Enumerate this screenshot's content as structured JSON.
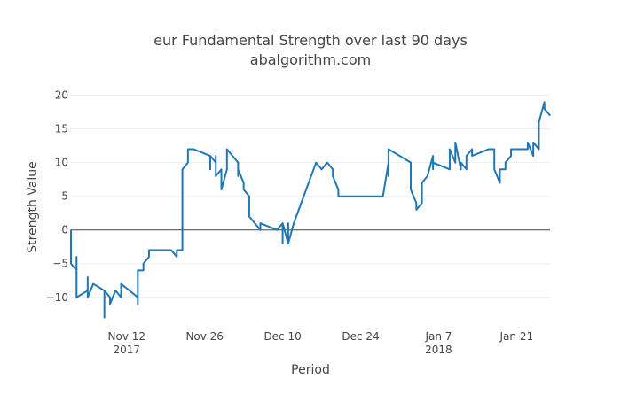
{
  "chart_data": {
    "type": "line",
    "title": "eur Fundamental Strength over last 90 days",
    "subtitle": "abalgorithm.com",
    "xlabel": "Period",
    "ylabel": "Strength Value",
    "xlim": [
      "2017-11-02",
      "2018-01-27"
    ],
    "ylim": [
      -14.5,
      21
    ],
    "yticks": [
      20,
      15,
      10,
      5,
      0,
      -5,
      -10
    ],
    "ytick_labels": [
      "20",
      "15",
      "10",
      "5",
      "0",
      "−5",
      "−10"
    ],
    "xticks": [
      {
        "date": "2017-11-12",
        "label": "Nov 12",
        "sub": "2017"
      },
      {
        "date": "2017-11-26",
        "label": "Nov 26",
        "sub": ""
      },
      {
        "date": "2017-12-10",
        "label": "Dec 10",
        "sub": ""
      },
      {
        "date": "2017-12-24",
        "label": "Dec 24",
        "sub": ""
      },
      {
        "date": "2018-01-07",
        "label": "Jan 7",
        "sub": "2018"
      },
      {
        "date": "2018-01-21",
        "label": "Jan 21",
        "sub": ""
      }
    ],
    "grid": true,
    "zero_line": true,
    "colors": {
      "line": "#1f77b4",
      "grid": "#eeeeee",
      "zero": "#444444"
    },
    "series": [
      {
        "x": [
          "2017-11-02",
          "2017-11-02",
          "2017-11-03",
          "2017-11-03",
          "2017-11-03",
          "2017-11-05",
          "2017-11-05",
          "2017-11-05",
          "2017-11-06",
          "2017-11-08",
          "2017-11-08",
          "2017-11-08",
          "2017-11-09",
          "2017-11-09",
          "2017-11-10",
          "2017-11-11",
          "2017-11-11",
          "2017-11-14",
          "2017-11-14",
          "2017-11-14",
          "2017-11-14",
          "2017-11-15",
          "2017-11-15",
          "2017-11-15",
          "2017-11-15",
          "2017-11-16",
          "2017-11-16",
          "2017-11-17",
          "2017-11-20",
          "2017-11-21",
          "2017-11-21",
          "2017-11-22",
          "2017-11-22",
          "2017-11-23",
          "2017-11-23",
          "2017-11-23",
          "2017-11-24",
          "2017-11-27",
          "2017-11-27",
          "2017-11-27",
          "2017-11-28",
          "2017-11-28",
          "2017-11-28",
          "2017-11-29",
          "2017-11-29",
          "2017-11-30",
          "2017-11-30",
          "2017-11-30",
          "2017-12-02",
          "2017-12-02",
          "2017-12-02",
          "2017-12-03",
          "2017-12-03",
          "2017-12-04",
          "2017-12-04",
          "2017-12-05",
          "2017-12-05",
          "2017-12-06",
          "2017-12-06",
          "2017-12-09",
          "2017-12-10",
          "2017-12-10",
          "2017-12-10",
          "2017-12-11",
          "2017-12-11",
          "2017-12-11",
          "2017-12-12",
          "2017-12-12",
          "2017-12-16",
          "2017-12-17",
          "2017-12-17",
          "2017-12-18",
          "2017-12-19",
          "2017-12-19",
          "2017-12-20",
          "2017-12-20",
          "2017-12-28",
          "2017-12-29",
          "2017-12-29",
          "2017-12-29",
          "2018-01-02",
          "2018-01-02",
          "2018-01-03",
          "2018-01-03",
          "2018-01-04",
          "2018-01-04",
          "2018-01-05",
          "2018-01-06",
          "2018-01-06",
          "2018-01-06",
          "2018-01-09",
          "2018-01-09",
          "2018-01-10",
          "2018-01-10",
          "2018-01-10",
          "2018-01-11",
          "2018-01-11",
          "2018-01-12",
          "2018-01-12",
          "2018-01-13",
          "2018-01-13",
          "2018-01-13",
          "2018-01-16",
          "2018-01-17",
          "2018-01-17",
          "2018-01-17",
          "2018-01-18",
          "2018-01-18",
          "2018-01-19",
          "2018-01-19",
          "2018-01-20",
          "2018-01-20",
          "2018-01-23",
          "2018-01-23",
          "2018-01-24",
          "2018-01-24",
          "2018-01-25",
          "2018-01-25",
          "2018-01-25",
          "2018-01-26",
          "2018-01-26",
          "2018-01-27"
        ],
        "y": [
          0,
          -5,
          -6,
          -4,
          -10,
          -9,
          -7,
          -10,
          -8,
          -9,
          -13,
          -9,
          -10,
          -11,
          -9,
          -10,
          -8,
          -10,
          -11,
          -11,
          -6,
          -6,
          -5,
          -6,
          -5,
          -4,
          -3,
          -3,
          -3,
          -4,
          -3,
          -3,
          9,
          10,
          12,
          12,
          12,
          11,
          9,
          11,
          10,
          11,
          8,
          9,
          6,
          9,
          12,
          12,
          10,
          8,
          9,
          7,
          6,
          5,
          2,
          1,
          1,
          0,
          1,
          0,
          1,
          -2,
          1,
          -2,
          1,
          -2,
          1,
          1,
          10,
          9,
          9,
          10,
          9,
          8,
          6,
          5,
          5,
          10,
          8,
          12,
          10,
          6,
          4,
          3,
          4,
          7,
          8,
          11,
          9,
          10,
          9,
          12,
          10,
          11,
          13,
          9,
          10,
          9,
          11,
          12,
          12,
          11,
          12,
          12,
          9,
          9,
          7,
          9,
          9,
          10,
          11,
          12,
          12,
          13,
          11,
          13,
          12,
          14,
          16,
          19,
          18,
          17
        ]
      }
    ]
  }
}
